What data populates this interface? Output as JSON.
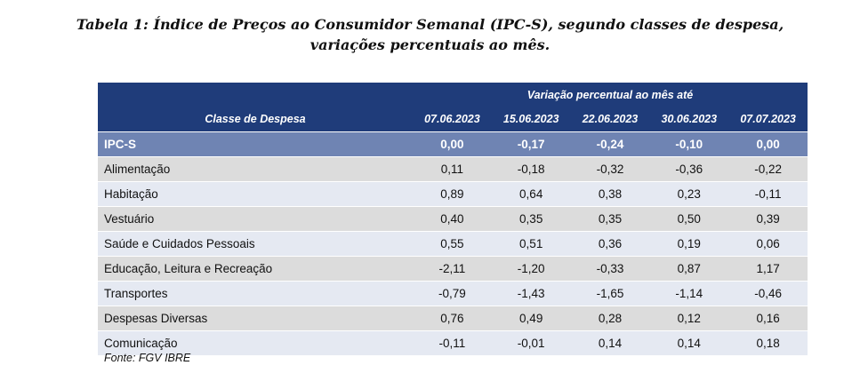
{
  "caption": {
    "label": "Tabela 1",
    "sep": ": ",
    "line1": "Índice de Preços ao Consumidor Semanal (IPC-S), segundo classes de despesa,",
    "line2": "variações percentuais ao mês."
  },
  "table": {
    "group_header": "Variação percentual ao mês até",
    "row_header": "Classe de Despesa",
    "columns": [
      "07.06.2023",
      "15.06.2023",
      "22.06.2023",
      "30.06.2023",
      "07.07.2023"
    ],
    "rows": [
      {
        "name": "IPC-S",
        "values": [
          "0,00",
          "-0,17",
          "-0,24",
          "-0,10",
          "0,00"
        ]
      },
      {
        "name": "Alimentação",
        "values": [
          "0,11",
          "-0,18",
          "-0,32",
          "-0,36",
          "-0,22"
        ]
      },
      {
        "name": "Habitação",
        "values": [
          "0,89",
          "0,64",
          "0,38",
          "0,23",
          "-0,11"
        ]
      },
      {
        "name": "Vestuário",
        "values": [
          "0,40",
          "0,35",
          "0,35",
          "0,50",
          "0,39"
        ]
      },
      {
        "name": "Saúde e Cuidados Pessoais",
        "values": [
          "0,55",
          "0,51",
          "0,36",
          "0,19",
          "0,06"
        ]
      },
      {
        "name": "Educação, Leitura e Recreação",
        "values": [
          "-2,11",
          "-1,20",
          "-0,33",
          "0,87",
          "1,17"
        ]
      },
      {
        "name": "Transportes",
        "values": [
          "-0,79",
          "-1,43",
          "-1,65",
          "-1,14",
          "-0,46"
        ]
      },
      {
        "name": "Despesas Diversas",
        "values": [
          "0,76",
          "0,49",
          "0,28",
          "0,12",
          "0,16"
        ]
      },
      {
        "name": "Comunicação",
        "values": [
          "-0,11",
          "-0,01",
          "0,14",
          "0,14",
          "0,18"
        ]
      }
    ]
  },
  "source": "Fonte: FGV IBRE",
  "colors": {
    "header": "#1f3c7a",
    "total_row": "#6f84b3",
    "row_gray": "#dcdcdc",
    "row_light": "#e5e9f2"
  }
}
